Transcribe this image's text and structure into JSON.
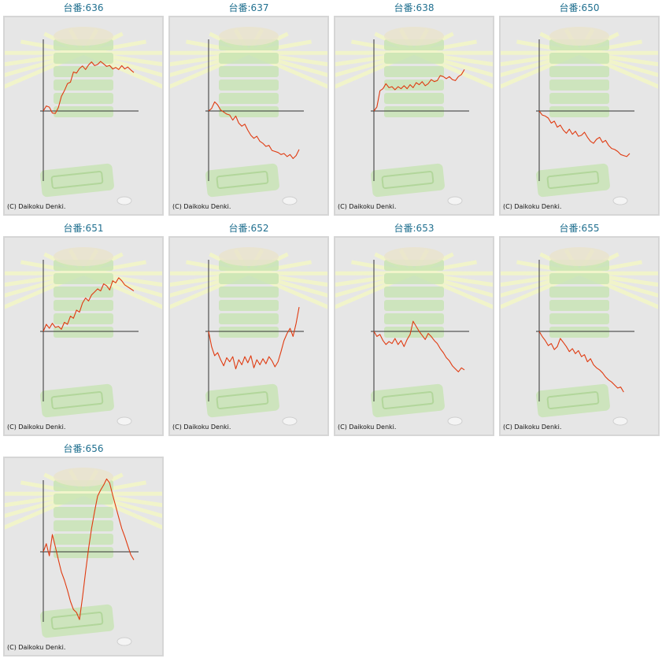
{
  "colors": {
    "line": "#e03a10",
    "axis": "#333333",
    "title": "#1f6f8f",
    "panel_bg": "#e6e6e6",
    "panel_border": "#d6d6d6",
    "decor_green": "#bfe3a6",
    "decor_ray": "#f4f7c6"
  },
  "copyright": "(C) Daikoku Denki.",
  "background_image": "pachinko-machine-watermark",
  "chart_data": [
    {
      "type": "line",
      "title": "台番:636",
      "x": [
        0,
        1,
        2,
        3,
        4,
        5,
        6,
        7,
        8,
        9,
        10,
        11,
        12,
        13,
        14,
        15,
        16,
        17,
        18,
        19,
        20,
        21,
        22,
        23,
        24,
        25,
        26,
        27,
        28,
        29,
        30
      ],
      "y": [
        0,
        500,
        380,
        -200,
        -240,
        350,
        1450,
        2000,
        2700,
        2850,
        3850,
        3750,
        4200,
        4450,
        4100,
        4550,
        4850,
        4480,
        4600,
        4900,
        4650,
        4400,
        4500,
        4150,
        4300,
        4100,
        4480,
        4150,
        4350,
        4050,
        3800
      ]
    },
    {
      "type": "line",
      "title": "台番:637",
      "x": [
        0,
        1,
        2,
        3,
        4,
        5,
        6,
        7,
        8,
        9,
        10,
        11,
        12,
        13,
        14,
        15,
        16,
        17,
        18,
        19,
        20,
        21,
        22,
        23,
        24,
        25,
        26,
        27,
        28,
        29,
        30
      ],
      "y": [
        0,
        250,
        900,
        600,
        100,
        -100,
        -300,
        -400,
        -900,
        -500,
        -1200,
        -1500,
        -1300,
        -1900,
        -2400,
        -2700,
        -2500,
        -3000,
        -3200,
        -3500,
        -3400,
        -3900,
        -4000,
        -4100,
        -4300,
        -4200,
        -4500,
        -4300,
        -4700,
        -4400,
        -3800
      ]
    },
    {
      "type": "line",
      "title": "台番:638",
      "x": [
        0,
        1,
        2,
        3,
        4,
        5,
        6,
        7,
        8,
        9,
        10,
        11,
        12,
        13,
        14,
        15,
        16,
        17,
        18,
        19,
        20,
        21,
        22,
        23,
        24,
        25,
        26,
        27,
        28,
        29,
        30
      ],
      "y": [
        0,
        400,
        2000,
        2200,
        2700,
        2300,
        2400,
        2100,
        2400,
        2200,
        2500,
        2200,
        2600,
        2300,
        2800,
        2600,
        2900,
        2500,
        2700,
        3100,
        2900,
        3000,
        3500,
        3400,
        3200,
        3400,
        3100,
        3000,
        3400,
        3600,
        4100
      ]
    },
    {
      "type": "line",
      "title": "台番:650",
      "x": [
        0,
        1,
        2,
        3,
        4,
        5,
        6,
        7,
        8,
        9,
        10,
        11,
        12,
        13,
        14,
        15,
        16,
        17,
        18,
        19,
        20,
        21,
        22,
        23,
        24,
        25,
        26,
        27,
        28,
        29,
        30
      ],
      "y": [
        0,
        -400,
        -500,
        -700,
        -1200,
        -1000,
        -1600,
        -1400,
        -1900,
        -2200,
        -1800,
        -2300,
        -2000,
        -2500,
        -2400,
        -2100,
        -2600,
        -3000,
        -3200,
        -2800,
        -2600,
        -3100,
        -2900,
        -3400,
        -3700,
        -3800,
        -4000,
        -4300,
        -4400,
        -4500,
        -4200
      ]
    },
    {
      "type": "line",
      "title": "台番:651",
      "x": [
        0,
        1,
        2,
        3,
        4,
        5,
        6,
        7,
        8,
        9,
        10,
        11,
        12,
        13,
        14,
        15,
        16,
        17,
        18,
        19,
        20,
        21,
        22,
        23,
        24,
        25,
        26,
        27,
        28,
        29,
        30
      ],
      "y": [
        0,
        700,
        300,
        800,
        400,
        500,
        200,
        900,
        700,
        1500,
        1300,
        2100,
        1900,
        2800,
        3300,
        3000,
        3600,
        3900,
        4200,
        4000,
        4700,
        4500,
        4100,
        5000,
        4800,
        5300,
        5000,
        4600,
        4400,
        4200,
        4000
      ]
    },
    {
      "type": "line",
      "title": "台番:652",
      "x": [
        0,
        1,
        2,
        3,
        4,
        5,
        6,
        7,
        8,
        9,
        10,
        11,
        12,
        13,
        14,
        15,
        16,
        17,
        18,
        19,
        20,
        21,
        22,
        23,
        24,
        25,
        26,
        27,
        28,
        29,
        30
      ],
      "y": [
        0,
        -1500,
        -2400,
        -2100,
        -2800,
        -3400,
        -2600,
        -3000,
        -2500,
        -3700,
        -2800,
        -3300,
        -2500,
        -3100,
        -2400,
        -3600,
        -2800,
        -3300,
        -2700,
        -3200,
        -2500,
        -2900,
        -3500,
        -3000,
        -2000,
        -900,
        -200,
        300,
        -500,
        800,
        2400
      ]
    },
    {
      "type": "line",
      "title": "台番:653",
      "x": [
        0,
        1,
        2,
        3,
        4,
        5,
        6,
        7,
        8,
        9,
        10,
        11,
        12,
        13,
        14,
        15,
        16,
        17,
        18,
        19,
        20,
        21,
        22,
        23,
        24,
        25,
        26,
        27,
        28,
        29,
        30
      ],
      "y": [
        0,
        -500,
        -300,
        -900,
        -1300,
        -1000,
        -1200,
        -700,
        -1300,
        -900,
        -1500,
        -800,
        -300,
        1000,
        500,
        0,
        -400,
        -800,
        -200,
        -500,
        -900,
        -1200,
        -1700,
        -2100,
        -2600,
        -2900,
        -3400,
        -3700,
        -4000,
        -3600,
        -3800
      ]
    },
    {
      "type": "line",
      "title": "台番:655",
      "x": [
        0,
        1,
        2,
        3,
        4,
        5,
        6,
        7,
        8,
        9,
        10,
        11,
        12,
        13,
        14,
        15,
        16,
        17,
        18,
        19,
        20,
        21,
        22,
        23,
        24,
        25,
        26,
        27,
        28,
        29,
        30
      ],
      "y": [
        0,
        -500,
        -900,
        -1400,
        -1200,
        -1800,
        -1500,
        -700,
        -1100,
        -1500,
        -2000,
        -1700,
        -2200,
        -1900,
        -2500,
        -2300,
        -3000,
        -2700,
        -3300,
        -3600,
        -3800,
        -4100,
        -4500,
        -4800,
        -5000,
        -5300,
        -5600,
        -5500,
        -6000,
        null,
        -5900
      ]
    },
    {
      "type": "line",
      "title": "台番:656",
      "x": [
        0,
        1,
        2,
        3,
        4,
        5,
        6,
        7,
        8,
        9,
        10,
        11,
        12,
        13,
        14,
        15,
        16,
        17,
        18,
        19,
        20,
        21,
        22,
        23,
        24,
        25,
        26,
        27,
        28,
        29,
        30
      ],
      "y": [
        0,
        800,
        -400,
        1700,
        500,
        -800,
        -2000,
        -2800,
        -3800,
        -4900,
        -5700,
        -6000,
        -6700,
        -4500,
        -2000,
        300,
        2300,
        4000,
        5500,
        6100,
        6600,
        7200,
        6800,
        5600,
        4500,
        3400,
        2300,
        1500,
        600,
        -300,
        -800
      ]
    }
  ]
}
